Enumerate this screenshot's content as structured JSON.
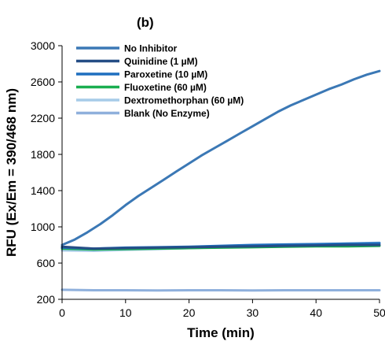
{
  "chart_data": {
    "type": "line",
    "panel_label": "(b)",
    "title": "",
    "xlabel": "Time (min)",
    "ylabel": "RFU (Ex/Em = 390/468 nm)",
    "xlim": [
      0,
      50
    ],
    "ylim": [
      200,
      3000
    ],
    "xticks": [
      "0",
      "10",
      "20",
      "30",
      "40",
      "50"
    ],
    "yticks": [
      "200",
      "600",
      "1000",
      "1400",
      "1800",
      "2200",
      "2600",
      "3000"
    ],
    "grid": false,
    "legend_position": "top-left",
    "series": [
      {
        "name": "No Inhibitor",
        "color": "#3b78b5",
        "x": [
          0,
          2,
          4,
          6,
          8,
          10,
          12,
          14,
          16,
          18,
          20,
          22,
          24,
          26,
          28,
          30,
          32,
          34,
          36,
          38,
          40,
          42,
          44,
          46,
          48,
          50
        ],
        "y": [
          800,
          860,
          940,
          1030,
          1130,
          1240,
          1340,
          1430,
          1520,
          1610,
          1700,
          1790,
          1870,
          1950,
          2030,
          2110,
          2190,
          2270,
          2340,
          2400,
          2460,
          2520,
          2570,
          2630,
          2680,
          2720
        ]
      },
      {
        "name": "Quinidine (1 µM)",
        "color": "#254d85",
        "x": [
          0,
          5,
          10,
          15,
          20,
          25,
          30,
          35,
          40,
          45,
          50
        ],
        "y": [
          780,
          760,
          765,
          770,
          775,
          780,
          785,
          790,
          795,
          800,
          800
        ]
      },
      {
        "name": "Paroxetine (10 µM)",
        "color": "#1e6fbf",
        "x": [
          0,
          5,
          10,
          15,
          20,
          25,
          30,
          35,
          40,
          45,
          50
        ],
        "y": [
          770,
          760,
          770,
          775,
          780,
          790,
          800,
          805,
          810,
          815,
          820
        ]
      },
      {
        "name": "Fluoxetine (60 µM)",
        "color": "#1aae50",
        "x": [
          0,
          5,
          10,
          15,
          20,
          25,
          30,
          35,
          40,
          45,
          50
        ],
        "y": [
          760,
          750,
          755,
          760,
          765,
          770,
          775,
          780,
          785,
          785,
          790
        ]
      },
      {
        "name": "Dextromethorphan (60 µM)",
        "color": "#a6cbe8",
        "x": [
          0,
          5,
          10,
          15,
          20,
          25,
          30,
          35,
          40,
          45,
          50
        ],
        "y": [
          740,
          735,
          745,
          755,
          765,
          775,
          785,
          795,
          805,
          815,
          825
        ]
      },
      {
        "name": "Blank (No Enzyme)",
        "color": "#8fb0dc",
        "x": [
          0,
          5,
          10,
          15,
          20,
          25,
          30,
          35,
          40,
          45,
          50
        ],
        "y": [
          305,
          300,
          300,
          298,
          300,
          300,
          298,
          300,
          300,
          300,
          300
        ]
      }
    ]
  }
}
